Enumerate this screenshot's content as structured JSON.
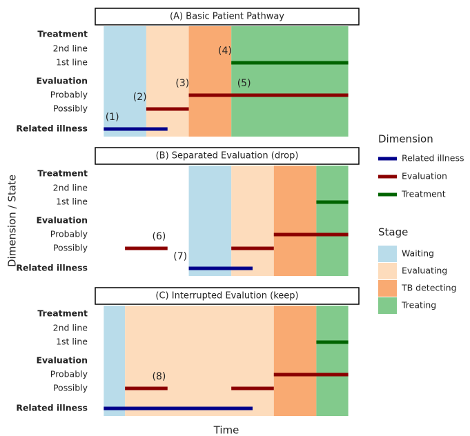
{
  "chart_data": {
    "type": "timeline",
    "x_label": "Time",
    "y_label": "Dimension / State",
    "xlim": [
      -0.2,
      6
    ],
    "rows": [
      {
        "label": "Treatment",
        "bold": true
      },
      {
        "label": "2nd line",
        "bold": false
      },
      {
        "label": "1st line",
        "bold": false
      },
      {
        "label": "Evaluation",
        "bold": true
      },
      {
        "label": "Probably",
        "bold": false
      },
      {
        "label": "Possibly",
        "bold": false
      },
      {
        "label": "Related illness",
        "bold": true
      }
    ],
    "dimension_legend": {
      "title": "Dimension",
      "items": [
        {
          "name": "Related illness",
          "color": "#00008b"
        },
        {
          "name": "Evaluation",
          "color": "#8b0000"
        },
        {
          "name": "Treatment",
          "color": "#006400"
        }
      ]
    },
    "stage_legend": {
      "title": "Stage",
      "items": [
        {
          "name": "Waiting",
          "color": "#b9dcea"
        },
        {
          "name": "Evaluating",
          "color": "#fddcbc"
        },
        {
          "name": "TB detecting",
          "color": "#f9aa72"
        },
        {
          "name": "Treating",
          "color": "#82ca8c"
        }
      ]
    },
    "panels": [
      {
        "title": "(A) Basic Patient Pathway",
        "stages": [
          {
            "stage": "Waiting",
            "start": 0,
            "end": 1
          },
          {
            "stage": "Evaluating",
            "start": 1,
            "end": 2
          },
          {
            "stage": "TB detecting",
            "start": 2,
            "end": 3
          },
          {
            "stage": "Treating",
            "start": 3,
            "end": 5.75
          }
        ],
        "segments": [
          {
            "dimension": "Related illness",
            "state": "Related illness",
            "start": 0,
            "end": 1.5
          },
          {
            "dimension": "Evaluation",
            "state": "Possibly",
            "start": 1,
            "end": 2
          },
          {
            "dimension": "Evaluation",
            "state": "Probably",
            "start": 2,
            "end": 5.75
          },
          {
            "dimension": "Treatment",
            "state": "1st line",
            "start": 3,
            "end": 5.75
          }
        ],
        "annotations": [
          {
            "text": "(1)",
            "x": 0.2,
            "state": "Related illness"
          },
          {
            "text": "(2)",
            "x": 0.85,
            "state": "Possibly"
          },
          {
            "text": "(3)",
            "x": 1.85,
            "state": "Probably"
          },
          {
            "text": "(4)",
            "x": 2.85,
            "state": "1st line"
          },
          {
            "text": "(5)",
            "x": 3.3,
            "state": "Probably"
          }
        ]
      },
      {
        "title": "(B) Separated Evaluation (drop)",
        "stages": [
          {
            "stage": "Waiting",
            "start": 2,
            "end": 3
          },
          {
            "stage": "Evaluating",
            "start": 3,
            "end": 4
          },
          {
            "stage": "TB detecting",
            "start": 4,
            "end": 5
          },
          {
            "stage": "Treating",
            "start": 5,
            "end": 5.75
          }
        ],
        "segments": [
          {
            "dimension": "Evaluation",
            "state": "Possibly",
            "start": 0.5,
            "end": 1.5
          },
          {
            "dimension": "Related illness",
            "state": "Related illness",
            "start": 2,
            "end": 3.5
          },
          {
            "dimension": "Evaluation",
            "state": "Possibly",
            "start": 3,
            "end": 4
          },
          {
            "dimension": "Evaluation",
            "state": "Probably",
            "start": 4,
            "end": 5.75
          },
          {
            "dimension": "Treatment",
            "state": "1st line",
            "start": 5,
            "end": 5.75
          }
        ],
        "annotations": [
          {
            "text": "(6)",
            "x": 1.3,
            "state": "Possibly"
          },
          {
            "text": "(7)",
            "x": 1.8,
            "state": "Related illness"
          }
        ]
      },
      {
        "title": "(C) Interrupted Evalution (keep)",
        "stages": [
          {
            "stage": "Waiting",
            "start": 0,
            "end": 0.5
          },
          {
            "stage": "Evaluating",
            "start": 0.5,
            "end": 4
          },
          {
            "stage": "TB detecting",
            "start": 4,
            "end": 5
          },
          {
            "stage": "Treating",
            "start": 5,
            "end": 5.75
          }
        ],
        "segments": [
          {
            "dimension": "Related illness",
            "state": "Related illness",
            "start": 0,
            "end": 3.5
          },
          {
            "dimension": "Evaluation",
            "state": "Possibly",
            "start": 0.5,
            "end": 1.5
          },
          {
            "dimension": "Evaluation",
            "state": "Possibly",
            "start": 3,
            "end": 4
          },
          {
            "dimension": "Evaluation",
            "state": "Probably",
            "start": 4,
            "end": 5.75
          },
          {
            "dimension": "Treatment",
            "state": "1st line",
            "start": 5,
            "end": 5.75
          }
        ],
        "annotations": [
          {
            "text": "(8)",
            "x": 1.3,
            "state": "Possibly"
          }
        ]
      }
    ]
  }
}
